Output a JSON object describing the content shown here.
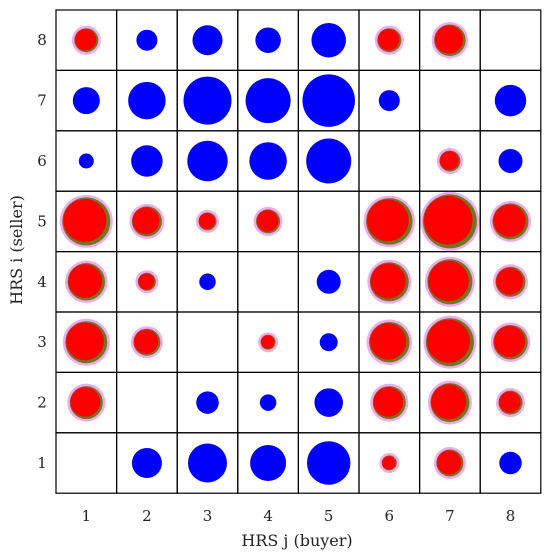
{
  "chart_data": {
    "type": "bubble-matrix",
    "title": "",
    "xlabel": "HRS j (buyer)",
    "ylabel": "HRS i (seller)",
    "x_categories": [
      "1",
      "2",
      "3",
      "4",
      "5",
      "6",
      "7",
      "8"
    ],
    "y_categories": [
      "1",
      "2",
      "3",
      "4",
      "5",
      "6",
      "7",
      "8"
    ],
    "size_scale_max": 5,
    "colors": {
      "blue": "#0000ff",
      "red": "#ff0000",
      "red_ring": "#6b7a1e",
      "red_halo": "#f4a8ee"
    },
    "cells": [
      {
        "i": 8,
        "j": 1,
        "size": 1.6,
        "color": "red"
      },
      {
        "i": 8,
        "j": 2,
        "size": 1.4,
        "color": "blue"
      },
      {
        "i": 8,
        "j": 3,
        "size": 2.0,
        "color": "blue"
      },
      {
        "i": 8,
        "j": 4,
        "size": 1.7,
        "color": "blue"
      },
      {
        "i": 8,
        "j": 5,
        "size": 2.3,
        "color": "blue"
      },
      {
        "i": 8,
        "j": 6,
        "size": 1.6,
        "color": "red"
      },
      {
        "i": 8,
        "j": 7,
        "size": 2.1,
        "color": "red"
      },
      {
        "i": 7,
        "j": 1,
        "size": 1.8,
        "color": "blue"
      },
      {
        "i": 7,
        "j": 2,
        "size": 2.5,
        "color": "blue"
      },
      {
        "i": 7,
        "j": 3,
        "size": 3.2,
        "color": "blue"
      },
      {
        "i": 7,
        "j": 4,
        "size": 3.0,
        "color": "blue"
      },
      {
        "i": 7,
        "j": 5,
        "size": 3.5,
        "color": "blue"
      },
      {
        "i": 7,
        "j": 6,
        "size": 1.4,
        "color": "blue"
      },
      {
        "i": 7,
        "j": 8,
        "size": 2.1,
        "color": "blue"
      },
      {
        "i": 6,
        "j": 1,
        "size": 1.0,
        "color": "blue"
      },
      {
        "i": 6,
        "j": 2,
        "size": 2.1,
        "color": "blue"
      },
      {
        "i": 6,
        "j": 3,
        "size": 2.7,
        "color": "blue"
      },
      {
        "i": 6,
        "j": 4,
        "size": 2.5,
        "color": "blue"
      },
      {
        "i": 6,
        "j": 5,
        "size": 3.0,
        "color": "blue"
      },
      {
        "i": 6,
        "j": 7,
        "size": 1.4,
        "color": "red"
      },
      {
        "i": 6,
        "j": 8,
        "size": 1.6,
        "color": "blue"
      },
      {
        "i": 5,
        "j": 1,
        "size": 3.2,
        "color": "red"
      },
      {
        "i": 5,
        "j": 2,
        "size": 2.0,
        "color": "red"
      },
      {
        "i": 5,
        "j": 3,
        "size": 1.2,
        "color": "red"
      },
      {
        "i": 5,
        "j": 4,
        "size": 1.6,
        "color": "red"
      },
      {
        "i": 5,
        "j": 6,
        "size": 3.1,
        "color": "red"
      },
      {
        "i": 5,
        "j": 7,
        "size": 3.7,
        "color": "red"
      },
      {
        "i": 5,
        "j": 8,
        "size": 2.4,
        "color": "red"
      },
      {
        "i": 4,
        "j": 1,
        "size": 2.5,
        "color": "red"
      },
      {
        "i": 4,
        "j": 2,
        "size": 1.2,
        "color": "red"
      },
      {
        "i": 4,
        "j": 3,
        "size": 1.1,
        "color": "blue"
      },
      {
        "i": 4,
        "j": 5,
        "size": 1.6,
        "color": "blue"
      },
      {
        "i": 4,
        "j": 6,
        "size": 2.6,
        "color": "red"
      },
      {
        "i": 4,
        "j": 7,
        "size": 3.0,
        "color": "red"
      },
      {
        "i": 4,
        "j": 8,
        "size": 2.0,
        "color": "red"
      },
      {
        "i": 3,
        "j": 1,
        "size": 2.8,
        "color": "red"
      },
      {
        "i": 3,
        "j": 2,
        "size": 1.8,
        "color": "red"
      },
      {
        "i": 3,
        "j": 4,
        "size": 1.0,
        "color": "red"
      },
      {
        "i": 3,
        "j": 5,
        "size": 1.2,
        "color": "blue"
      },
      {
        "i": 3,
        "j": 6,
        "size": 2.7,
        "color": "red"
      },
      {
        "i": 3,
        "j": 7,
        "size": 3.2,
        "color": "red"
      },
      {
        "i": 3,
        "j": 8,
        "size": 2.3,
        "color": "red"
      },
      {
        "i": 2,
        "j": 1,
        "size": 2.2,
        "color": "red"
      },
      {
        "i": 2,
        "j": 3,
        "size": 1.5,
        "color": "blue"
      },
      {
        "i": 2,
        "j": 4,
        "size": 1.1,
        "color": "blue"
      },
      {
        "i": 2,
        "j": 5,
        "size": 1.9,
        "color": "blue"
      },
      {
        "i": 2,
        "j": 6,
        "size": 2.2,
        "color": "red"
      },
      {
        "i": 2,
        "j": 7,
        "size": 2.6,
        "color": "red"
      },
      {
        "i": 2,
        "j": 8,
        "size": 1.6,
        "color": "red"
      },
      {
        "i": 1,
        "j": 2,
        "size": 2.0,
        "color": "blue"
      },
      {
        "i": 1,
        "j": 3,
        "size": 2.6,
        "color": "blue"
      },
      {
        "i": 1,
        "j": 4,
        "size": 2.4,
        "color": "blue"
      },
      {
        "i": 1,
        "j": 5,
        "size": 2.9,
        "color": "blue"
      },
      {
        "i": 1,
        "j": 6,
        "size": 1.0,
        "color": "red"
      },
      {
        "i": 1,
        "j": 7,
        "size": 1.8,
        "color": "red"
      },
      {
        "i": 1,
        "j": 8,
        "size": 1.5,
        "color": "blue"
      }
    ]
  }
}
